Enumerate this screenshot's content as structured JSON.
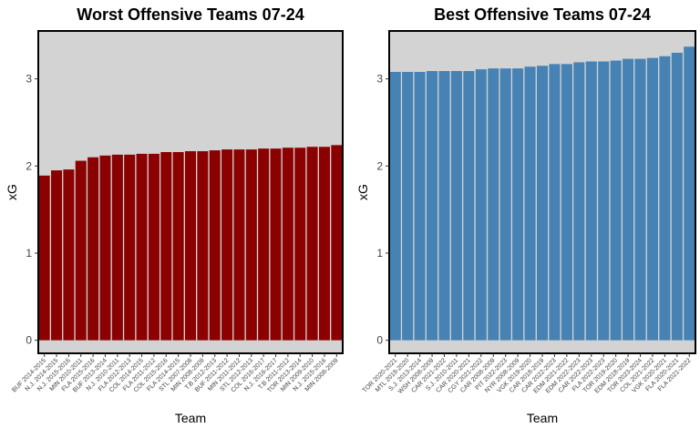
{
  "chart_data": [
    {
      "type": "bar",
      "title": "Worst Offensive Teams 07-24",
      "xlabel": "Team",
      "ylabel": "xG",
      "ylim": [
        -0.15,
        3.55
      ],
      "yticks": [
        0,
        1,
        2,
        3
      ],
      "bar_color": "#8b0000",
      "panel_color": "#d3d3d3",
      "categories": [
        "BUF 2014-2015",
        "N.J. 2014-2015",
        "N.J. 2015-2016",
        "MIN 2010-2011",
        "FLA 2015-2016",
        "BUF 2013-2014",
        "N.J. 2010-2011",
        "FLA 2012-2013",
        "COL 2014-2015",
        "FLA 2011-2012",
        "COL 2015-2016",
        "FLA 2014-2015",
        "STL 2007-2008",
        "MIN 2008-2009",
        "T.B 2012-2013",
        "BUF 2011-2012",
        "MIN 2011-2012",
        "STL 2012-2013",
        "COL 2016-2017",
        "N.J. 2016-2017",
        "T.B 2011-2012",
        "TOR 2013-2014",
        "MIN 2009-2010",
        "N.J. 2015-2016",
        "MIN 2008-2009"
      ],
      "values": [
        1.89,
        1.95,
        1.96,
        2.06,
        2.1,
        2.12,
        2.13,
        2.13,
        2.14,
        2.14,
        2.16,
        2.16,
        2.17,
        2.17,
        2.18,
        2.19,
        2.19,
        2.19,
        2.2,
        2.2,
        2.21,
        2.21,
        2.22,
        2.22,
        2.24
      ]
    },
    {
      "type": "bar",
      "title": "Best Offensive Teams 07-24",
      "xlabel": "Team",
      "ylabel": "xG",
      "ylim": [
        -0.15,
        3.55
      ],
      "yticks": [
        0,
        1,
        2,
        3
      ],
      "bar_color": "#4682b4",
      "panel_color": "#d3d3d3",
      "categories": [
        "TOR 2020-2021",
        "MTL 2019-2020",
        "S.J. 2013-2014",
        "WSH 2008-2009",
        "CAR 2021-2022",
        "S.J. 2010-2011",
        "CAR 2020-2021",
        "CGY 2021-2022",
        "CAR 2008-2009",
        "PIT 2022-2023",
        "NYR 2008-2009",
        "VGK 2019-2020",
        "CAR 2018-2019",
        "CAR 2022-2023",
        "EDM 2021-2022",
        "EDM 2022-2023",
        "CAR 2022-2023",
        "FLA 2022-2023",
        "TOR 2019-2020",
        "EDM 2018-2019",
        "TOR 2023-2024",
        "COL 2021-2022",
        "VGK 2020-2021",
        "FLA 2020-2021",
        "FLA 2021-2022"
      ],
      "values": [
        3.08,
        3.08,
        3.08,
        3.09,
        3.09,
        3.09,
        3.09,
        3.11,
        3.12,
        3.12,
        3.12,
        3.14,
        3.15,
        3.17,
        3.17,
        3.19,
        3.2,
        3.2,
        3.21,
        3.23,
        3.23,
        3.24,
        3.26,
        3.3,
        3.37
      ]
    }
  ]
}
